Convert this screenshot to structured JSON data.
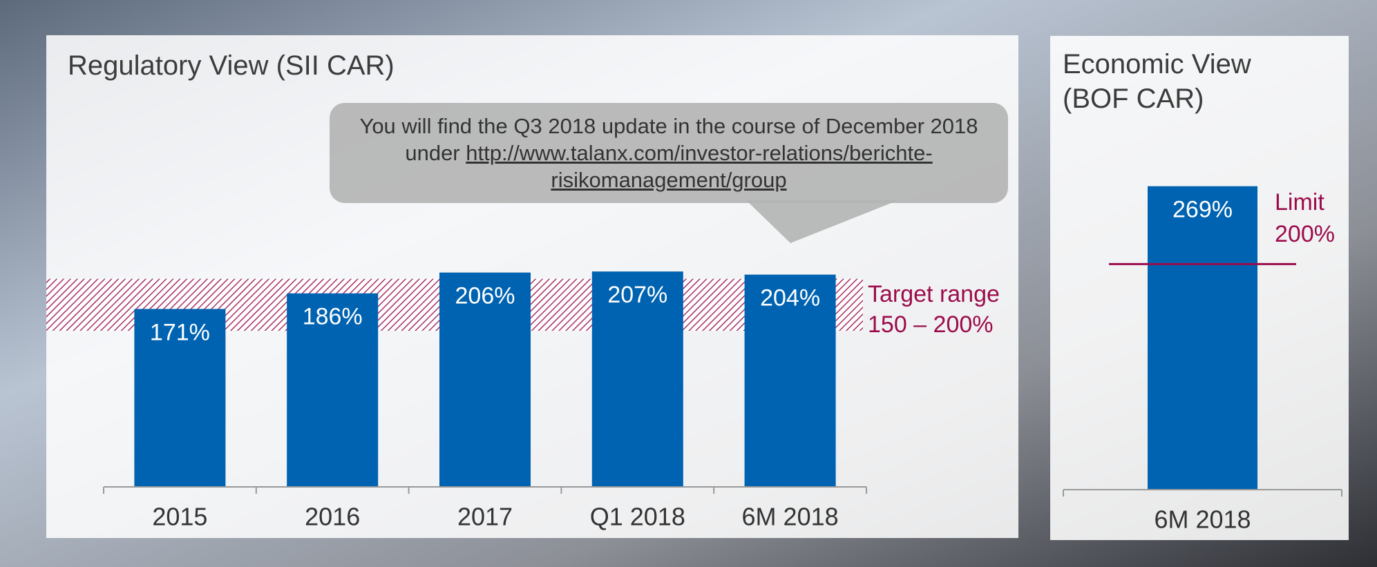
{
  "chart_data": [
    {
      "type": "bar",
      "title": "Regulatory View (SII CAR)",
      "categories": [
        "2015",
        "2016",
        "2017",
        "Q1 2018",
        "6M 2018"
      ],
      "values": [
        171,
        186,
        206,
        207,
        204
      ],
      "value_labels": [
        "171%",
        "186%",
        "206%",
        "207%",
        "204%"
      ],
      "color": "#0063b1",
      "ylim": [
        0,
        300
      ],
      "target_range": {
        "label": "Target range",
        "range_label": "150 – 200%",
        "low": 150,
        "high": 200,
        "color": "#9c0c4c"
      }
    },
    {
      "type": "bar",
      "title": "Economic View (BOF CAR)",
      "categories": [
        "6M 2018"
      ],
      "values": [
        269
      ],
      "value_labels": [
        "269%"
      ],
      "color": "#0063b1",
      "ylim": [
        0,
        300
      ],
      "limit": {
        "label": "Limit",
        "value": 200,
        "value_label": "200%",
        "color": "#9c0c4c"
      }
    }
  ],
  "callout": {
    "text": "You will find the Q3 2018 update in the course of December 2018 under",
    "link": "http://www.talanx.com/investor-relations/berichte-risikomanagement/group"
  }
}
